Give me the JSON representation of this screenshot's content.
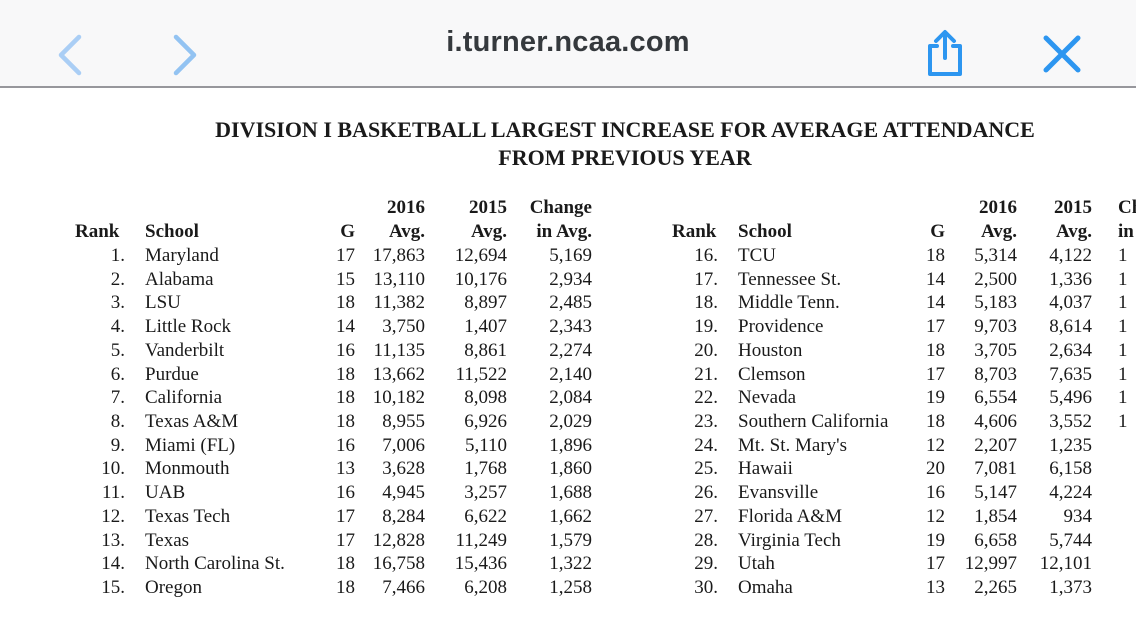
{
  "browser_bar": {
    "url_title": "i.turner.ncaa.com",
    "icons": {
      "back": "chevron-left-icon",
      "forward": "chevron-right-icon",
      "share": "share-icon",
      "close": "close-icon"
    },
    "colors": {
      "bar_background": "#F8F8F9",
      "bar_border": "#97979C",
      "accent_blue": "#2D96F0",
      "chevron_back_blue": "#AACEF5",
      "chevron_forward_blue": "#93C3F2",
      "title_text": "#35393D"
    }
  },
  "document": {
    "title_line1": "DIVISION I BASKETBALL LARGEST INCREASE FOR AVERAGE ATTENDANCE",
    "title_line2": "FROM PREVIOUS YEAR",
    "text_color": "#1A1A1A",
    "tables": [
      {
        "headers": {
          "rank": "Rank",
          "school": "School",
          "g": "G",
          "y2016_line1": "2016",
          "y2016_line2": "Avg.",
          "y2015_line1": "2015",
          "y2015_line2": "Avg.",
          "change_line1": "Change",
          "change_line2": "in Avg."
        },
        "rows": [
          {
            "rank": "1.",
            "school": "Maryland",
            "g": "17",
            "avg2016": "17,863",
            "avg2015": "12,694",
            "change": "5,169"
          },
          {
            "rank": "2.",
            "school": "Alabama",
            "g": "15",
            "avg2016": "13,110",
            "avg2015": "10,176",
            "change": "2,934"
          },
          {
            "rank": "3.",
            "school": "LSU",
            "g": "18",
            "avg2016": "11,382",
            "avg2015": "8,897",
            "change": "2,485"
          },
          {
            "rank": "4.",
            "school": "Little Rock",
            "g": "14",
            "avg2016": "3,750",
            "avg2015": "1,407",
            "change": "2,343"
          },
          {
            "rank": "5.",
            "school": "Vanderbilt",
            "g": "16",
            "avg2016": "11,135",
            "avg2015": "8,861",
            "change": "2,274"
          },
          {
            "rank": "6.",
            "school": "Purdue",
            "g": "18",
            "avg2016": "13,662",
            "avg2015": "11,522",
            "change": "2,140"
          },
          {
            "rank": "7.",
            "school": "California",
            "g": "18",
            "avg2016": "10,182",
            "avg2015": "8,098",
            "change": "2,084"
          },
          {
            "rank": "8.",
            "school": "Texas A&M",
            "g": "18",
            "avg2016": "8,955",
            "avg2015": "6,926",
            "change": "2,029"
          },
          {
            "rank": "9.",
            "school": "Miami (FL)",
            "g": "16",
            "avg2016": "7,006",
            "avg2015": "5,110",
            "change": "1,896"
          },
          {
            "rank": "10.",
            "school": "Monmouth",
            "g": "13",
            "avg2016": "3,628",
            "avg2015": "1,768",
            "change": "1,860"
          },
          {
            "rank": "11.",
            "school": "UAB",
            "g": "16",
            "avg2016": "4,945",
            "avg2015": "3,257",
            "change": "1,688"
          },
          {
            "rank": "12.",
            "school": "Texas Tech",
            "g": "17",
            "avg2016": "8,284",
            "avg2015": "6,622",
            "change": "1,662"
          },
          {
            "rank": "13.",
            "school": "Texas",
            "g": "17",
            "avg2016": "12,828",
            "avg2015": "11,249",
            "change": "1,579"
          },
          {
            "rank": "14.",
            "school": "North Carolina St.",
            "g": "18",
            "avg2016": "16,758",
            "avg2015": "15,436",
            "change": "1,322"
          },
          {
            "rank": "15.",
            "school": "Oregon",
            "g": "18",
            "avg2016": "7,466",
            "avg2015": "6,208",
            "change": "1,258"
          }
        ]
      },
      {
        "headers": {
          "rank": "Rank",
          "school": "School",
          "g": "G",
          "y2016_line1": "2016",
          "y2016_line2": "Avg.",
          "y2015_line1": "2015",
          "y2015_line2": "Avg.",
          "change_line1": "Cha",
          "change_line2": "in"
        },
        "rows": [
          {
            "rank": "16.",
            "school": "TCU",
            "g": "18",
            "avg2016": "5,314",
            "avg2015": "4,122",
            "change": "1"
          },
          {
            "rank": "17.",
            "school": "Tennessee St.",
            "g": "14",
            "avg2016": "2,500",
            "avg2015": "1,336",
            "change": "1"
          },
          {
            "rank": "18.",
            "school": "Middle Tenn.",
            "g": "14",
            "avg2016": "5,183",
            "avg2015": "4,037",
            "change": "1"
          },
          {
            "rank": "19.",
            "school": "Providence",
            "g": "17",
            "avg2016": "9,703",
            "avg2015": "8,614",
            "change": "1"
          },
          {
            "rank": "20.",
            "school": "Houston",
            "g": "18",
            "avg2016": "3,705",
            "avg2015": "2,634",
            "change": "1"
          },
          {
            "rank": "21.",
            "school": "Clemson",
            "g": "17",
            "avg2016": "8,703",
            "avg2015": "7,635",
            "change": "1"
          },
          {
            "rank": "22.",
            "school": "Nevada",
            "g": "19",
            "avg2016": "6,554",
            "avg2015": "5,496",
            "change": "1"
          },
          {
            "rank": "23.",
            "school": "Southern California",
            "g": "18",
            "avg2016": "4,606",
            "avg2015": "3,552",
            "change": "1"
          },
          {
            "rank": "24.",
            "school": "Mt. St. Mary's",
            "g": "12",
            "avg2016": "2,207",
            "avg2015": "1,235",
            "change": ""
          },
          {
            "rank": "25.",
            "school": "Hawaii",
            "g": "20",
            "avg2016": "7,081",
            "avg2015": "6,158",
            "change": ""
          },
          {
            "rank": "26.",
            "school": "Evansville",
            "g": "16",
            "avg2016": "5,147",
            "avg2015": "4,224",
            "change": ""
          },
          {
            "rank": "27.",
            "school": "Florida A&M",
            "g": "12",
            "avg2016": "1,854",
            "avg2015": "934",
            "change": ""
          },
          {
            "rank": "28.",
            "school": "Virginia Tech",
            "g": "19",
            "avg2016": "6,658",
            "avg2015": "5,744",
            "change": ""
          },
          {
            "rank": "29.",
            "school": "Utah",
            "g": "17",
            "avg2016": "12,997",
            "avg2015": "12,101",
            "change": ""
          },
          {
            "rank": "30.",
            "school": "Omaha",
            "g": "13",
            "avg2016": "2,265",
            "avg2015": "1,373",
            "change": ""
          }
        ]
      }
    ]
  }
}
